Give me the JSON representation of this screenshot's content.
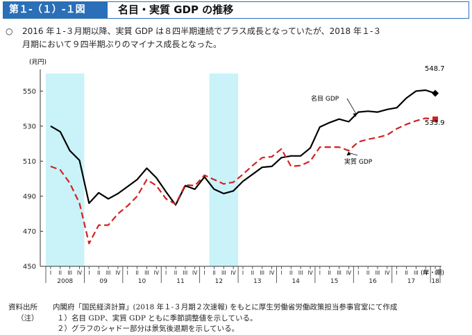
{
  "header": {
    "figure_id": "第１-（１）-１図",
    "title": "名目・実質 GDP の推移"
  },
  "summary": {
    "bullet": "○",
    "line1": "2016 年１-３月期以降、実質 GDP は８四半期連続でプラス成長となっていたが、2018 年１-３",
    "line2": "月期において９四半期ぶりのマイナス成長となった。"
  },
  "chart_data": {
    "type": "line",
    "ylabel": "(兆円)",
    "xlabel": "(年・期)",
    "ylim": [
      450,
      560
    ],
    "yticks": [
      450,
      470,
      490,
      510,
      530,
      550
    ],
    "quarter_labels": [
      "I",
      "II",
      "III",
      "IV"
    ],
    "year_labels": [
      {
        "label": "2008",
        "start": 0
      },
      {
        "label": "09",
        "start": 4
      },
      {
        "label": "10",
        "start": 8
      },
      {
        "label": "11",
        "start": 12
      },
      {
        "label": "12",
        "start": 16
      },
      {
        "label": "13",
        "start": 20
      },
      {
        "label": "14",
        "start": 24
      },
      {
        "label": "15",
        "start": 28
      },
      {
        "label": "16",
        "start": 32
      },
      {
        "label": "17",
        "start": 36
      },
      {
        "label": "18",
        "start": 40
      }
    ],
    "shaded_periods": [
      {
        "from": 0,
        "to": 4
      },
      {
        "from": 17,
        "to": 20
      }
    ],
    "series": [
      {
        "name": "名目 GDP",
        "color": "#000000",
        "style": "solid",
        "marker": "diamond",
        "end_label": "548.7",
        "values": [
          530.0,
          526.8,
          516.0,
          510.5,
          486.0,
          492.0,
          488.5,
          491.5,
          495.5,
          499.5,
          506.0,
          500.5,
          492.5,
          485.0,
          496.0,
          494.0,
          501.0,
          494.0,
          491.5,
          493.0,
          498.5,
          502.5,
          506.5,
          507.0,
          512.0,
          513.0,
          513.0,
          517.5,
          529.5,
          532.0,
          534.0,
          532.5,
          538.0,
          538.5,
          538.0,
          539.5,
          540.5,
          546.0,
          550.0,
          550.5,
          548.7
        ]
      },
      {
        "name": "実質 GDP",
        "color": "#d42020",
        "style": "dashed",
        "marker": "square",
        "end_label": "533.9",
        "values": [
          507.0,
          505.0,
          497.5,
          486.0,
          463.0,
          473.5,
          473.5,
          480.0,
          484.5,
          490.0,
          499.5,
          496.0,
          488.5,
          485.5,
          496.5,
          496.0,
          502.0,
          499.5,
          497.0,
          498.0,
          502.5,
          507.5,
          512.0,
          512.5,
          517.0,
          507.0,
          507.5,
          510.0,
          518.0,
          518.0,
          518.0,
          516.0,
          521.0,
          522.5,
          523.5,
          525.0,
          528.5,
          531.0,
          533.0,
          534.5,
          533.9
        ]
      }
    ],
    "annotations": [
      {
        "text": "名目 GDP",
        "series": 0
      },
      {
        "text": "実質 GDP",
        "series": 1
      }
    ],
    "grid": false
  },
  "footer": {
    "source_label": "資料出所",
    "source_text": "内閣府「国民経済計算」(2018 年１-３月期２次速報) をもとに厚生労働省労働政策担当参事官室にて作成",
    "note_label": "（注）",
    "note1": "１）名目 GDP、実質 GDP ともに季節調整値を示している。",
    "note2": "２）グラフのシャドー部分は景気後退期を示している。"
  }
}
